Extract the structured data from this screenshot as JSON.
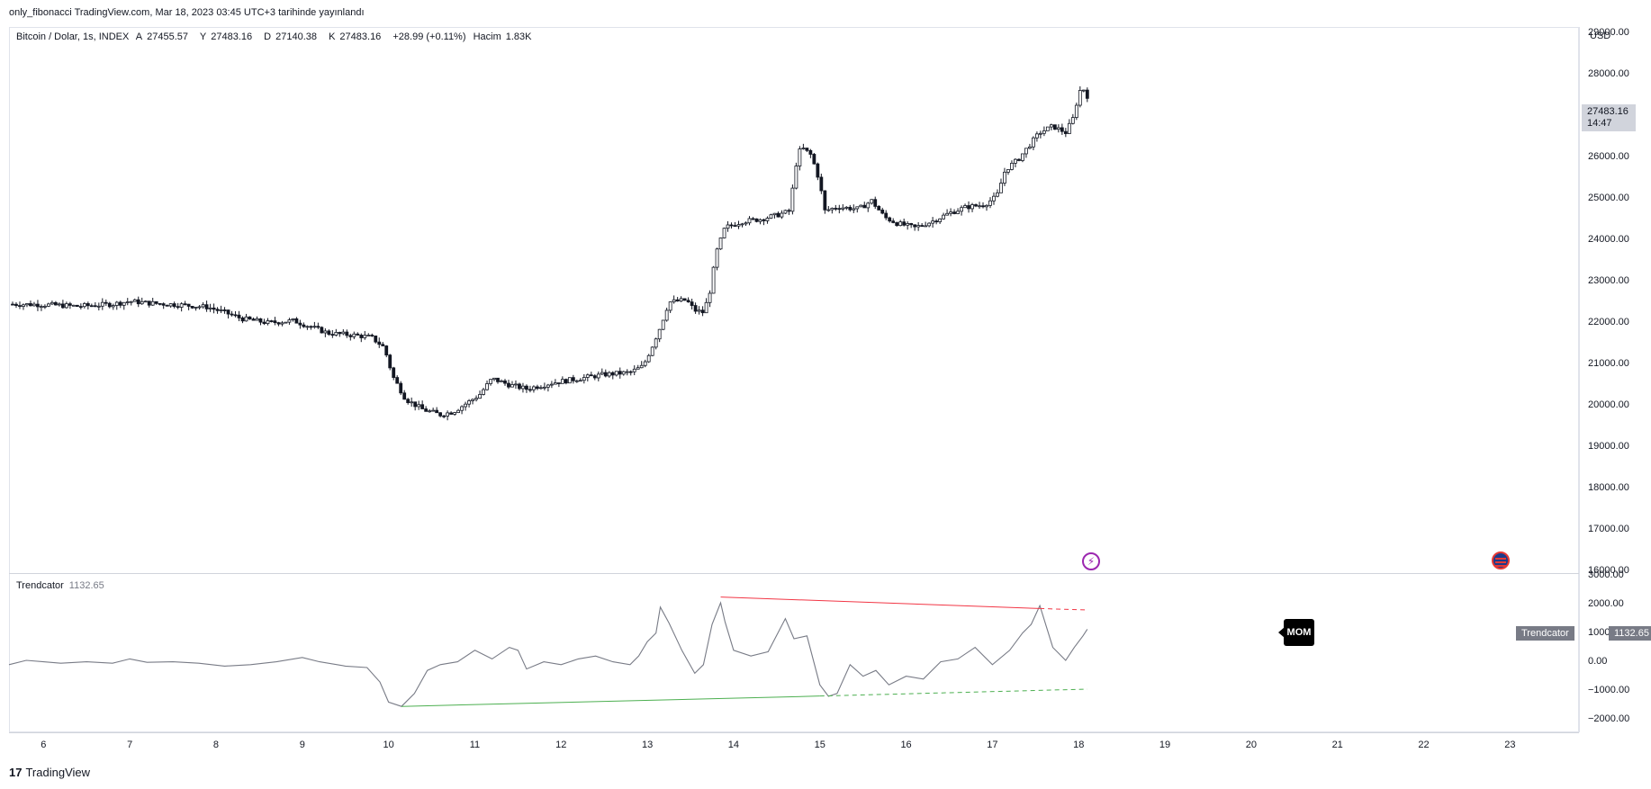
{
  "header": {
    "published": "only_fibonacci TradingView.com, Mar 18, 2023 03:45 UTC+3 tarihinde yayınlandı"
  },
  "legend": {
    "symbol": "Bitcoin / Dolar, 1s, INDEX",
    "open_label": "A",
    "open": "27455.57",
    "high_label": "Y",
    "high": "27483.16",
    "low_label": "D",
    "low": "27140.38",
    "close_label": "K",
    "close": "27483.16",
    "change": "+28.99 (+0.11%)",
    "volume_label": "Hacim",
    "volume": "1.83K"
  },
  "price_axis": {
    "currency": "USD",
    "labels": [
      "29000.00",
      "28000.00",
      "27000.00",
      "26000.00",
      "25000.00",
      "24000.00",
      "23000.00",
      "22000.00",
      "21000.00",
      "20000.00",
      "19000.00",
      "18000.00",
      "17000.00",
      "16000.00"
    ],
    "last_price": "27483.16",
    "countdown": "14:47"
  },
  "indicator": {
    "name": "Trendcator",
    "value": "1132.65",
    "axis_labels": [
      "3000.00",
      "2000.00",
      "1000.00",
      "0.00",
      "−1000.00",
      "−2000.00"
    ],
    "badge": "MOM"
  },
  "time_axis": {
    "labels": [
      "6",
      "7",
      "8",
      "9",
      "10",
      "11",
      "12",
      "13",
      "14",
      "15",
      "16",
      "17",
      "18",
      "19",
      "20",
      "21",
      "22",
      "23"
    ]
  },
  "footer": {
    "brand": "TradingView",
    "logo": "17"
  },
  "colors": {
    "candle": "#131722",
    "up_trend": "#f23645",
    "down_trend": "#4caf50",
    "indicator_line": "#787b86",
    "axis_tag": "#787b86"
  },
  "icons": {
    "event1": "lightning-icon",
    "event2": "us-flag-icon"
  },
  "chart_data": [
    {
      "type": "candlestick",
      "title": "Bitcoin / Dolar, 1s, INDEX",
      "x_range": [
        5.6,
        23.8
      ],
      "ylim": [
        15950,
        29150
      ],
      "x_ticks": [
        6,
        7,
        8,
        9,
        10,
        11,
        12,
        13,
        14,
        15,
        16,
        17,
        18,
        19,
        20,
        21,
        22,
        23
      ],
      "close_path": [
        [
          5.6,
          22450
        ],
        [
          6.0,
          22440
        ],
        [
          6.4,
          22400
        ],
        [
          6.8,
          22450
        ],
        [
          7.0,
          22520
        ],
        [
          7.2,
          22480
        ],
        [
          7.6,
          22430
        ],
        [
          7.9,
          22380
        ],
        [
          8.1,
          22250
        ],
        [
          8.3,
          22100
        ],
        [
          8.6,
          22000
        ],
        [
          8.9,
          22050
        ],
        [
          9.1,
          21900
        ],
        [
          9.3,
          21750
        ],
        [
          9.6,
          21700
        ],
        [
          9.8,
          21650
        ],
        [
          9.95,
          21400
        ],
        [
          10.05,
          20700
        ],
        [
          10.2,
          20150
        ],
        [
          10.4,
          19900
        ],
        [
          10.6,
          19780
        ],
        [
          10.75,
          19850
        ],
        [
          10.9,
          20050
        ],
        [
          11.05,
          20250
        ],
        [
          11.2,
          20650
        ],
        [
          11.4,
          20500
        ],
        [
          11.6,
          20400
        ],
        [
          11.9,
          20550
        ],
        [
          12.2,
          20650
        ],
        [
          12.5,
          20750
        ],
        [
          12.8,
          20800
        ],
        [
          12.95,
          20950
        ],
        [
          13.05,
          21400
        ],
        [
          13.15,
          21900
        ],
        [
          13.25,
          22500
        ],
        [
          13.45,
          22550
        ],
        [
          13.55,
          22300
        ],
        [
          13.65,
          22250
        ],
        [
          13.72,
          22700
        ],
        [
          13.8,
          23700
        ],
        [
          13.9,
          24300
        ],
        [
          14.1,
          24450
        ],
        [
          14.3,
          24500
        ],
        [
          14.5,
          24600
        ],
        [
          14.65,
          24700
        ],
        [
          14.72,
          25800
        ],
        [
          14.78,
          26250
        ],
        [
          14.9,
          26050
        ],
        [
          15.0,
          25400
        ],
        [
          15.05,
          24700
        ],
        [
          15.2,
          24800
        ],
        [
          15.45,
          24750
        ],
        [
          15.6,
          24950
        ],
        [
          15.75,
          24550
        ],
        [
          15.9,
          24400
        ],
        [
          16.1,
          24300
        ],
        [
          16.3,
          24450
        ],
        [
          16.5,
          24650
        ],
        [
          16.7,
          24800
        ],
        [
          16.9,
          24850
        ],
        [
          17.05,
          25050
        ],
        [
          17.15,
          25700
        ],
        [
          17.3,
          25950
        ],
        [
          17.45,
          26350
        ],
        [
          17.55,
          26600
        ],
        [
          17.7,
          26750
        ],
        [
          17.85,
          26600
        ],
        [
          17.95,
          27000
        ],
        [
          18.0,
          27600
        ],
        [
          18.07,
          27650
        ],
        [
          18.1,
          27483.16
        ]
      ]
    },
    {
      "type": "line",
      "title": "Trendcator",
      "x_range": [
        5.6,
        23.8
      ],
      "ylim": [
        -2450,
        3050
      ],
      "series": [
        {
          "values": [
            [
              5.6,
              -100
            ],
            [
              5.8,
              50
            ],
            [
              6.0,
              0
            ],
            [
              6.2,
              -50
            ],
            [
              6.5,
              0
            ],
            [
              6.8,
              -50
            ],
            [
              7.0,
              100
            ],
            [
              7.2,
              -20
            ],
            [
              7.5,
              0
            ],
            [
              7.8,
              -50
            ],
            [
              8.1,
              -150
            ],
            [
              8.4,
              -100
            ],
            [
              8.7,
              0
            ],
            [
              9.0,
              150
            ],
            [
              9.2,
              0
            ],
            [
              9.5,
              -150
            ],
            [
              9.75,
              -200
            ],
            [
              9.9,
              -700
            ],
            [
              10.0,
              -1400
            ],
            [
              10.15,
              -1550
            ],
            [
              10.3,
              -1100
            ],
            [
              10.45,
              -300
            ],
            [
              10.6,
              -100
            ],
            [
              10.8,
              0
            ],
            [
              11.0,
              400
            ],
            [
              11.2,
              100
            ],
            [
              11.4,
              500
            ],
            [
              11.5,
              400
            ],
            [
              11.6,
              -250
            ],
            [
              11.8,
              0
            ],
            [
              12.0,
              -100
            ],
            [
              12.2,
              100
            ],
            [
              12.4,
              200
            ],
            [
              12.6,
              0
            ],
            [
              12.8,
              -100
            ],
            [
              12.9,
              200
            ],
            [
              13.0,
              700
            ],
            [
              13.1,
              1000
            ],
            [
              13.15,
              1900
            ],
            [
              13.25,
              1350
            ],
            [
              13.4,
              400
            ],
            [
              13.55,
              -400
            ],
            [
              13.65,
              -100
            ],
            [
              13.75,
              1300
            ],
            [
              13.85,
              2050
            ],
            [
              13.9,
              1400
            ],
            [
              14.0,
              400
            ],
            [
              14.2,
              200
            ],
            [
              14.4,
              350
            ],
            [
              14.6,
              1500
            ],
            [
              14.7,
              800
            ],
            [
              14.85,
              900
            ],
            [
              15.0,
              -800
            ],
            [
              15.1,
              -1200
            ],
            [
              15.2,
              -1100
            ],
            [
              15.35,
              -100
            ],
            [
              15.5,
              -500
            ],
            [
              15.65,
              -300
            ],
            [
              15.8,
              -800
            ],
            [
              16.0,
              -500
            ],
            [
              16.2,
              -600
            ],
            [
              16.4,
              0
            ],
            [
              16.6,
              100
            ],
            [
              16.8,
              500
            ],
            [
              17.0,
              -100
            ],
            [
              17.2,
              400
            ],
            [
              17.35,
              1000
            ],
            [
              17.45,
              1300
            ],
            [
              17.55,
              1950
            ],
            [
              17.7,
              500
            ],
            [
              17.85,
              50
            ],
            [
              17.95,
              500
            ],
            [
              18.05,
              900
            ],
            [
              18.1,
              1132.65
            ]
          ]
        }
      ],
      "trendlines": [
        {
          "color": "red",
          "from": [
            13.85,
            2250
          ],
          "to": [
            17.55,
            1850
          ],
          "extend_to": [
            18.1,
            1800
          ]
        },
        {
          "color": "green",
          "from": [
            10.15,
            -1550
          ],
          "to": [
            15.0,
            -1190
          ],
          "extend_to": [
            18.1,
            -950
          ]
        }
      ]
    }
  ]
}
